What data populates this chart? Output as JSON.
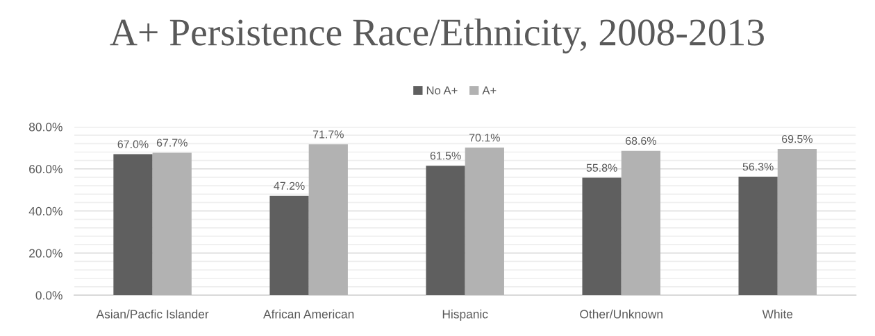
{
  "chart_data": {
    "type": "bar",
    "title": "A+ Persistence Race/Ethnicity, 2008-2013",
    "categories": [
      "Asian/Pacfic Islander",
      "African American",
      "Hispanic",
      "Other/Unknown",
      "White"
    ],
    "series": [
      {
        "name": "No A+",
        "color": "#5f5f5f",
        "values": [
          67.0,
          47.2,
          61.5,
          55.8,
          56.3
        ],
        "value_labels": [
          "67.0%",
          "47.2%",
          "61.5%",
          "55.8%",
          "56.3%"
        ]
      },
      {
        "name": "A+",
        "color": "#b2b2b2",
        "values": [
          67.7,
          71.7,
          70.1,
          68.6,
          69.5
        ],
        "value_labels": [
          "67.7%",
          "71.7%",
          "70.1%",
          "68.6%",
          "69.5%"
        ]
      }
    ],
    "ylim": [
      0,
      80
    ],
    "yticks": [
      {
        "value": 0,
        "label": "0.0%"
      },
      {
        "value": 4,
        "label": null
      },
      {
        "value": 8,
        "label": null
      },
      {
        "value": 12,
        "label": null
      },
      {
        "value": 16,
        "label": null
      },
      {
        "value": 20,
        "label": "20.0%"
      },
      {
        "value": 24,
        "label": null
      },
      {
        "value": 28,
        "label": null
      },
      {
        "value": 32,
        "label": null
      },
      {
        "value": 36,
        "label": null
      },
      {
        "value": 40,
        "label": "40.0%"
      },
      {
        "value": 44,
        "label": null
      },
      {
        "value": 48,
        "label": null
      },
      {
        "value": 52,
        "label": null
      },
      {
        "value": 56,
        "label": null
      },
      {
        "value": 60,
        "label": "60.0%"
      },
      {
        "value": 64,
        "label": null
      },
      {
        "value": 68,
        "label": null
      },
      {
        "value": 72,
        "label": null
      },
      {
        "value": 76,
        "label": null
      },
      {
        "value": 80,
        "label": "80.0%"
      }
    ],
    "grid": "y",
    "legend": "top"
  }
}
